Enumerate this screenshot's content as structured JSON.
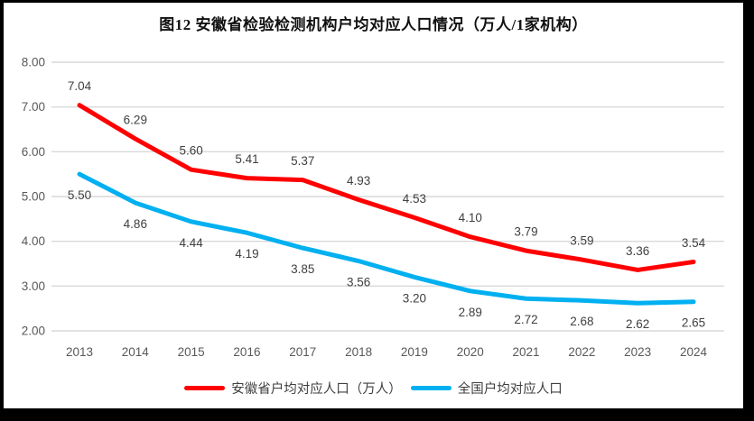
{
  "title": "图12 安徽省检验检测机构户均对应人口情况（万人/1家机构）",
  "legend": {
    "items": [
      {
        "label": "安徽省户均对应人口（万人）",
        "color": "#ff0000"
      },
      {
        "label": "全国户均对应人口",
        "color": "#00b0f0"
      }
    ]
  },
  "chart_data": {
    "type": "line",
    "title": "图12 安徽省检验检测机构户均对应人口情况（万人/1家机构）",
    "categories": [
      "2013",
      "2014",
      "2015",
      "2016",
      "2017",
      "2018",
      "2019",
      "2020",
      "2021",
      "2022",
      "2023",
      "2024"
    ],
    "series": [
      {
        "name": "安徽省户均对应人口（万人）",
        "color": "#ff0000",
        "values": [
          7.04,
          6.29,
          5.6,
          5.41,
          5.37,
          4.93,
          4.53,
          4.1,
          3.79,
          3.59,
          3.36,
          3.54
        ],
        "label_position": "above"
      },
      {
        "name": "全国户均对应人口",
        "color": "#00b0f0",
        "values": [
          5.5,
          4.86,
          4.44,
          4.19,
          3.85,
          3.56,
          3.2,
          2.89,
          2.72,
          2.68,
          2.62,
          2.65
        ],
        "label_position": "below"
      }
    ],
    "xlabel": "",
    "ylabel": "",
    "ylim": [
      2.0,
      8.0
    ],
    "ytick_step": 1.0,
    "ytick_labels": [
      "2.00",
      "3.00",
      "4.00",
      "5.00",
      "6.00",
      "7.00",
      "8.00"
    ],
    "data_label_decimals": 2,
    "grid": true,
    "gridline_color": "#d9d9d9",
    "axis_label_color": "#595959",
    "data_label_color": "#404040",
    "legend_position": "bottom"
  }
}
